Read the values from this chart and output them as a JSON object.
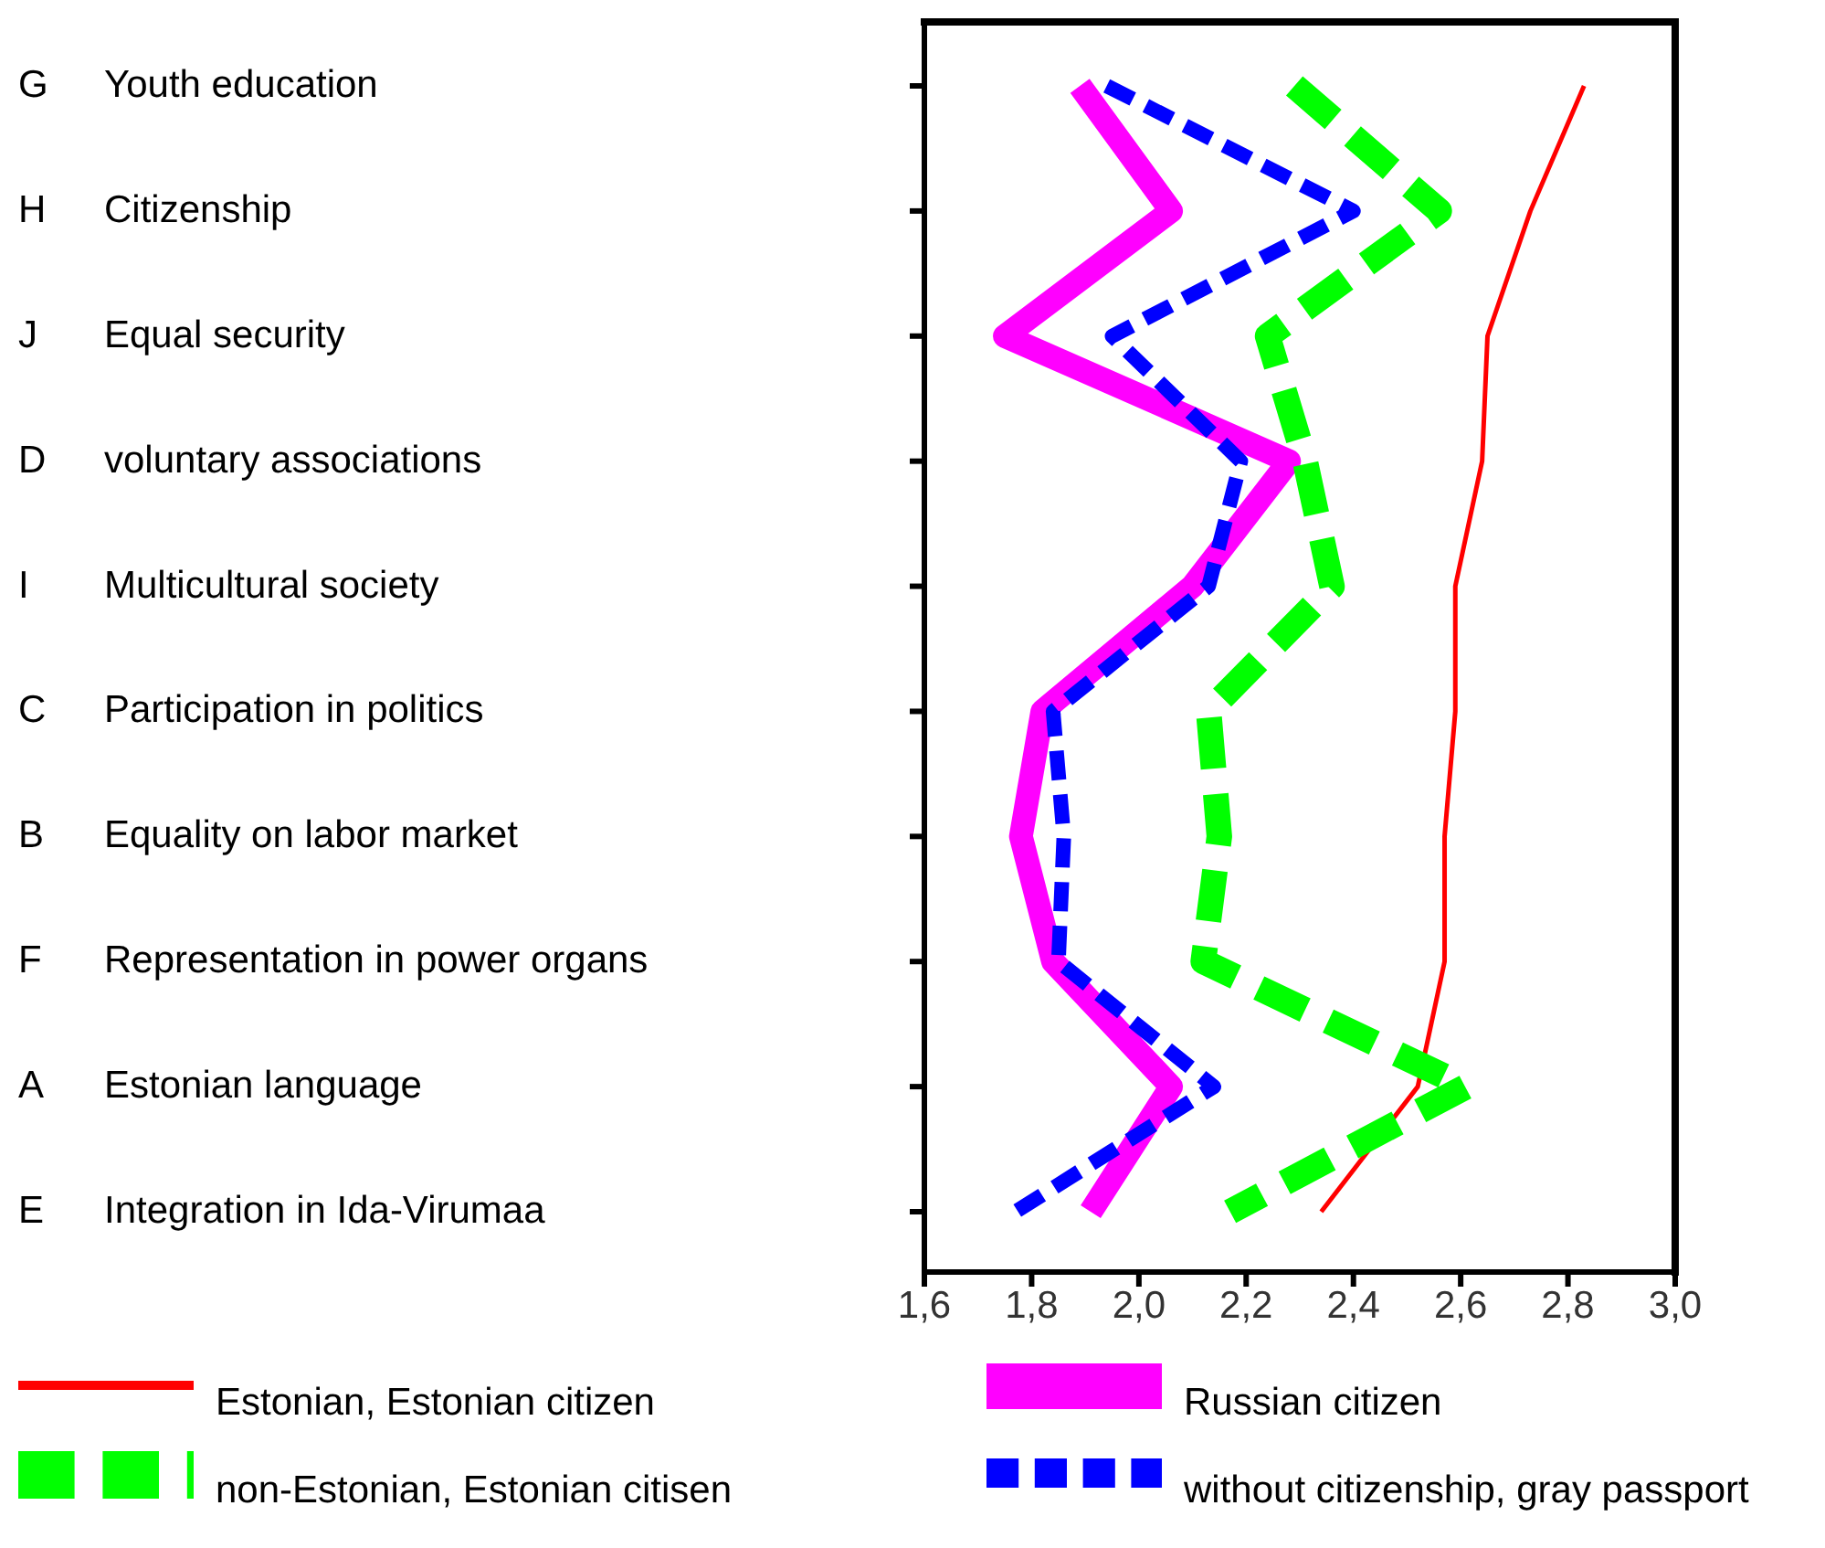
{
  "chart_data": {
    "type": "line",
    "orientation": "horizontal",
    "categories": [
      "G Youth education",
      "H Citizenship",
      "J Equal security",
      "D voluntary associations",
      "I Multicultural society",
      "C Participation in politics",
      "B Equality on labor market",
      "F Representation in power organs",
      "A Estonian language",
      "E Integration in Ida-Virumaa"
    ],
    "series": [
      {
        "name": "Estonian, Estonian citizen",
        "color": "#ff0000",
        "line_style": "solid",
        "values": [
          2.83,
          2.73,
          2.65,
          2.64,
          2.59,
          2.59,
          2.57,
          2.57,
          2.52,
          2.34
        ]
      },
      {
        "name": "Russian citizen",
        "color": "#ff00ff",
        "line_style": "solid",
        "values": [
          1.89,
          2.06,
          1.75,
          2.28,
          2.1,
          1.82,
          1.78,
          1.84,
          2.06,
          1.91
        ]
      },
      {
        "name": "non-Estonian, Estonian citisen",
        "color": "#00ff00",
        "line_style": "dashed",
        "values": [
          2.29,
          2.56,
          2.24,
          2.31,
          2.36,
          2.13,
          2.15,
          2.12,
          2.61,
          2.17
        ]
      },
      {
        "name": "without citizenship, gray passport",
        "color": "#0000ff",
        "line_style": "dashed",
        "values": [
          1.94,
          2.4,
          1.95,
          2.19,
          2.13,
          1.84,
          1.86,
          1.85,
          2.14,
          1.77
        ]
      }
    ],
    "xlim": [
      1.6,
      3.0
    ],
    "xticks": [
      {
        "value": 1.6,
        "label": "1,6"
      },
      {
        "value": 1.8,
        "label": "1,8"
      },
      {
        "value": 2.0,
        "label": "2,0"
      },
      {
        "value": 2.2,
        "label": "2,2"
      },
      {
        "value": 2.4,
        "label": "2,4"
      },
      {
        "value": 2.6,
        "label": "2,6"
      },
      {
        "value": 2.8,
        "label": "2,8"
      },
      {
        "value": 3.0,
        "label": "3,0"
      }
    ],
    "grid": false,
    "legend": "bottom",
    "marker": "none"
  }
}
